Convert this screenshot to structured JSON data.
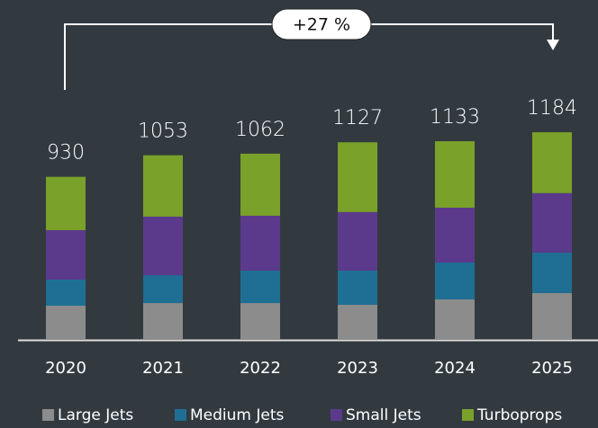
{
  "chart_data": {
    "type": "stacked_bar",
    "annotation": "+27 %",
    "categories": [
      "2020",
      "2021",
      "2022",
      "2023",
      "2024",
      "2025"
    ],
    "totals": [
      930,
      1053,
      1062,
      1127,
      1133,
      1184
    ],
    "series": [
      {
        "name": "Large Jets",
        "color": "#8c8c8c",
        "values": [
          195,
          210,
          210,
          200,
          231,
          267
        ]
      },
      {
        "name": "Medium Jets",
        "color": "#1f6f94",
        "values": [
          149,
          159,
          185,
          195,
          210,
          231
        ]
      },
      {
        "name": "Small Jets",
        "color": "#5b3a8c",
        "values": [
          282,
          334,
          313,
          334,
          313,
          339
        ]
      },
      {
        "name": "Turboprops",
        "color": "#7aa12a",
        "values": [
          304,
          350,
          354,
          398,
          379,
          347
        ]
      }
    ]
  }
}
